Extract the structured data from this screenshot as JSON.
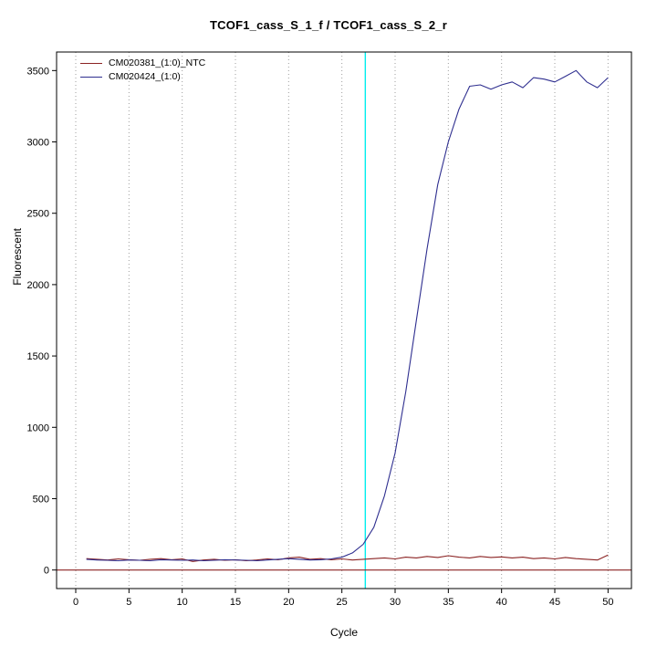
{
  "title": "TCOF1_cass_S_1_f / TCOF1_cass_S_2_r",
  "colors": {
    "background": "#ffffff",
    "axis": "#000000",
    "grid": "#9e9e9e",
    "threshold_line": "#00eeee",
    "baseline": "#8b2323"
  },
  "chart_data": {
    "type": "line",
    "title": "TCOF1_cass_S_1_f / TCOF1_cass_S_2_r",
    "xlabel": "Cycle",
    "ylabel": "Fluorescent",
    "xlim": [
      0,
      50
    ],
    "ylim": [
      0,
      3500
    ],
    "x_ticks": [
      0,
      5,
      10,
      15,
      20,
      25,
      30,
      35,
      40,
      45,
      50
    ],
    "y_ticks": [
      0,
      500,
      1000,
      1500,
      2000,
      2500,
      3000,
      3500
    ],
    "grid": "vertical-dotted",
    "legend_position": "top-left-inside",
    "threshold_cycle_line_x": 27.2,
    "baseline_y": 0,
    "x": [
      1,
      2,
      3,
      4,
      5,
      6,
      7,
      8,
      9,
      10,
      11,
      12,
      13,
      14,
      15,
      16,
      17,
      18,
      19,
      20,
      21,
      22,
      23,
      24,
      25,
      26,
      27,
      28,
      29,
      30,
      31,
      32,
      33,
      34,
      35,
      36,
      37,
      38,
      39,
      40,
      41,
      42,
      43,
      44,
      45,
      46,
      47,
      48,
      49,
      50
    ],
    "series": [
      {
        "name": "CM020381_(1:0)_NTC",
        "color": "#8b2323",
        "values": [
          80,
          75,
          70,
          78,
          72,
          68,
          75,
          80,
          72,
          78,
          60,
          70,
          75,
          68,
          72,
          65,
          70,
          78,
          72,
          85,
          90,
          75,
          80,
          72,
          78,
          70,
          75,
          80,
          85,
          78,
          90,
          85,
          95,
          88,
          100,
          90,
          85,
          95,
          88,
          92,
          85,
          90,
          80,
          85,
          78,
          88,
          80,
          75,
          70,
          105
        ]
      },
      {
        "name": "CM020424_(1:0)",
        "color": "#2e2e8f",
        "values": [
          75,
          70,
          68,
          65,
          70,
          68,
          65,
          72,
          70,
          68,
          70,
          65,
          68,
          72,
          70,
          68,
          65,
          70,
          75,
          80,
          75,
          70,
          72,
          78,
          90,
          120,
          180,
          300,
          520,
          820,
          1250,
          1750,
          2250,
          2700,
          3000,
          3230,
          3390,
          3400,
          3370,
          3400,
          3420,
          3380,
          3450,
          3440,
          3420,
          3460,
          3500,
          3420,
          3380,
          3450
        ]
      }
    ]
  }
}
